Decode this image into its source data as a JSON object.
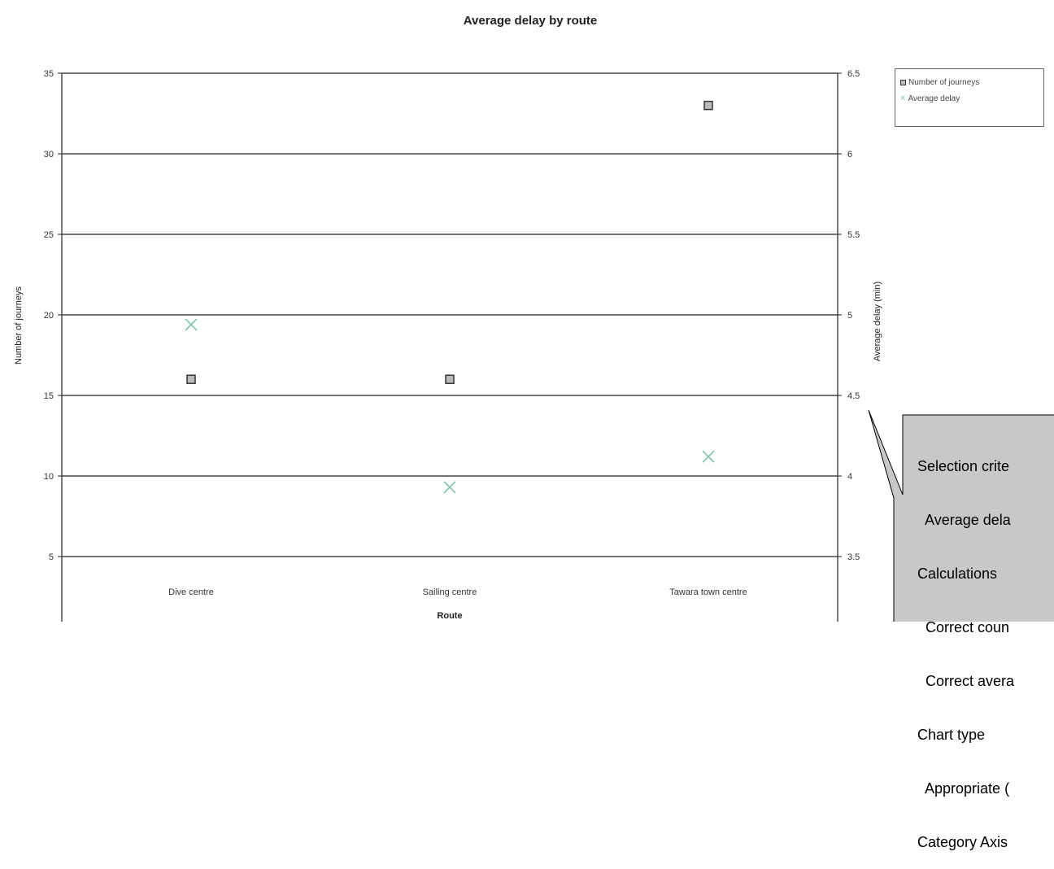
{
  "chart_data": {
    "type": "scatter",
    "title": "Average delay by route",
    "xlabel": "Route",
    "ylabel_left": "Number of journeys",
    "ylabel_right": "Average delay (min)",
    "categories": [
      "Dive centre",
      "Sailing centre",
      "Tawara town centre"
    ],
    "y_left_lim": [
      0,
      35
    ],
    "y_left_ticks": [
      "0",
      "5",
      "10",
      "15",
      "20",
      "25",
      "30",
      "35"
    ],
    "y_right_lim": [
      3,
      6.5
    ],
    "y_right_ticks": [
      "3",
      "3.5",
      "4",
      "4.5",
      "5",
      "5.5",
      "6",
      "6.5"
    ],
    "grid": true,
    "legend_position": "top-right",
    "series": [
      {
        "name": "Number of journeys",
        "axis": "left",
        "marker": "square",
        "color": "#bbbbbb",
        "values": [
          16,
          16,
          33
        ]
      },
      {
        "name": "Average delay",
        "axis": "right",
        "marker": "x",
        "color": "#7cc3a4",
        "values": [
          4.94,
          3.93,
          4.12
        ]
      }
    ]
  },
  "callout": {
    "lines": [
      "Selection crite",
      "  Average dela",
      "Calculations",
      "  Correct coun",
      "  Correct avera",
      "Chart type",
      "  Appropriate (",
      "Category Axis"
    ],
    "fill": "#c8c8c8"
  }
}
